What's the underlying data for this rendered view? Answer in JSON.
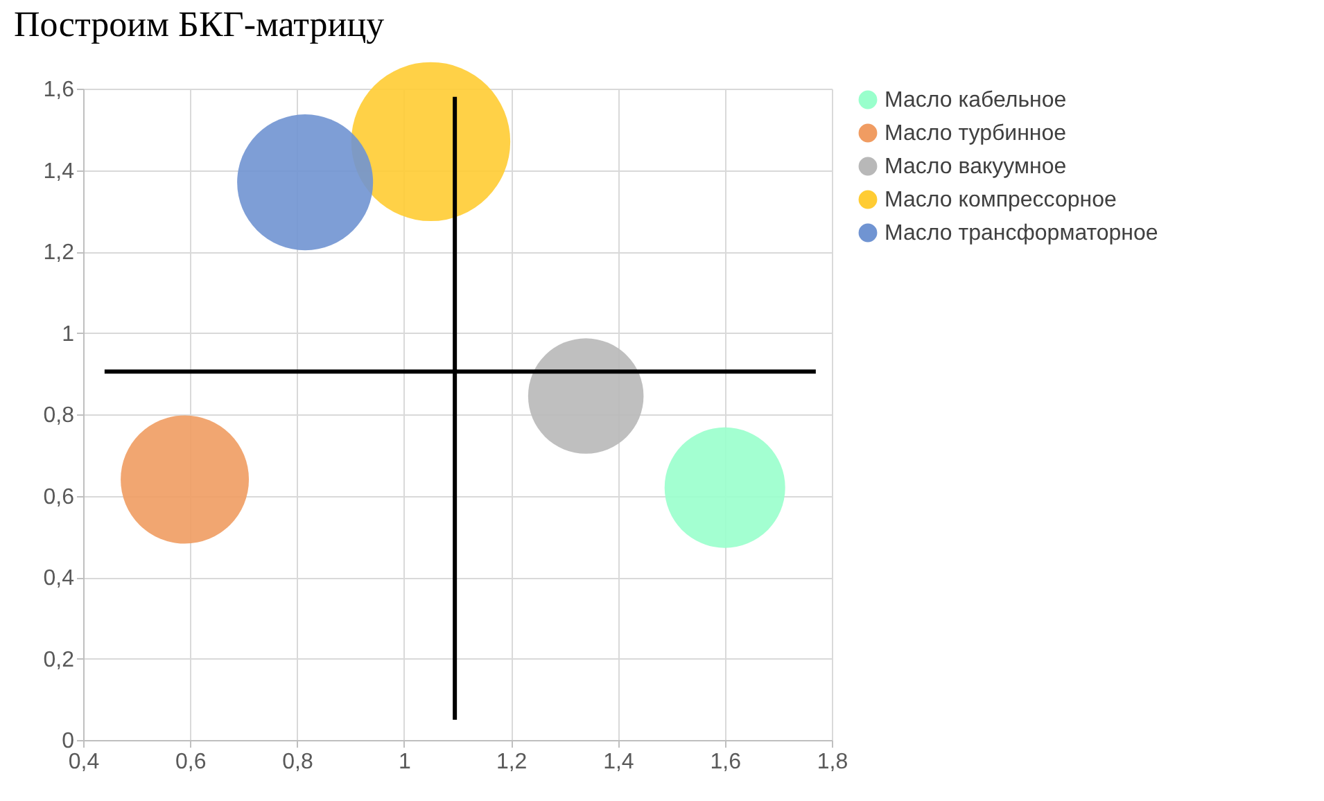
{
  "chart_data": {
    "type": "bubble",
    "title": "Построим БКГ-матрицу",
    "xlim": [
      0.4,
      1.8
    ],
    "xticks": [
      {
        "value": 0.4,
        "label": "0,4"
      },
      {
        "value": 0.6,
        "label": "0,6"
      },
      {
        "value": 0.8,
        "label": "0,8"
      },
      1,
      {
        "value": 1.2,
        "label": "1,2"
      },
      {
        "value": 1.4,
        "label": "1,4"
      },
      {
        "value": 1.6,
        "label": "1,6"
      },
      {
        "value": 1.8,
        "label": "1,8"
      }
    ],
    "ylim": [
      0,
      1.6
    ],
    "yticks": [
      0,
      {
        "value": 0.2,
        "label": "0,2"
      },
      {
        "value": 0.4,
        "label": "0,4"
      },
      {
        "value": 0.6,
        "label": "0,6"
      },
      {
        "value": 0.8,
        "label": "0,8"
      },
      1,
      {
        "value": 1.2,
        "label": "1,2"
      },
      {
        "value": 1.4,
        "label": "1,4"
      },
      {
        "value": 1.6,
        "label": "1,6"
      }
    ],
    "grid": true,
    "legend": "right",
    "series": [
      {
        "name": "Масло кабельное",
        "color": "#99ffcc",
        "x": [
          1.6
        ],
        "values": [
          0.62
        ],
        "sizes": [
          0.575
        ]
      },
      {
        "name": "Масло турбинное",
        "color": "#f09c62",
        "x": [
          0.59
        ],
        "values": [
          0.64
        ],
        "sizes": [
          0.65
        ]
      },
      {
        "name": "Масло вакуумное",
        "color": "#b8b8b8",
        "x": [
          1.34
        ],
        "values": [
          0.845
        ],
        "sizes": [
          0.527
        ]
      },
      {
        "name": "Масло компрессорное",
        "color": "#ffcc33",
        "x": [
          1.05
        ],
        "values": [
          1.47
        ],
        "sizes": [
          1
        ]
      },
      {
        "name": "Масло трансформаторное",
        "color": "#7094d2",
        "x": [
          0.815
        ],
        "values": [
          1.37
        ],
        "sizes": [
          0.73
        ]
      },
      {
        "type": "line",
        "color": "#000000",
        "x": [
          1.095,
          1.095
        ],
        "values": [
          0.05,
          1.58
        ]
      },
      {
        "type": "line",
        "color": "#000000",
        "x": [
          0.44,
          1.77
        ],
        "values": [
          0.905,
          0.905
        ]
      }
    ]
  }
}
